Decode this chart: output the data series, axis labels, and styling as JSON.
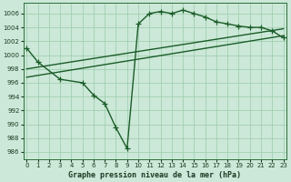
{
  "title": "Graphe pression niveau de la mer (hPa)",
  "bg_color": "#cce8d8",
  "grid_color": "#99ccaa",
  "line_color": "#1a5c28",
  "xlim": [
    -0.3,
    23.3
  ],
  "ylim": [
    985.0,
    1007.5
  ],
  "xticks": [
    0,
    1,
    2,
    3,
    4,
    5,
    6,
    7,
    8,
    9,
    10,
    11,
    12,
    13,
    14,
    15,
    16,
    17,
    18,
    19,
    20,
    21,
    22,
    23
  ],
  "yticks": [
    986,
    988,
    990,
    992,
    994,
    996,
    998,
    1000,
    1002,
    1004,
    1006
  ],
  "main_x": [
    0,
    1,
    3,
    5,
    6,
    7,
    8,
    9,
    10,
    11,
    12,
    13,
    14,
    15,
    16,
    17,
    18,
    19,
    20,
    21,
    22,
    23
  ],
  "main_y": [
    1001.0,
    999.0,
    996.5,
    996.0,
    994.2,
    993.0,
    989.5,
    986.5,
    1004.5,
    1006.0,
    1006.3,
    1006.0,
    1006.5,
    1006.0,
    1005.5,
    1004.8,
    1004.5,
    1004.2,
    1004.0,
    1004.0,
    1003.5,
    1002.5
  ],
  "trend1_x": [
    0,
    23
  ],
  "trend1_y": [
    998.0,
    1003.8
  ],
  "trend2_x": [
    0,
    23
  ],
  "trend2_y": [
    996.8,
    1002.8
  ],
  "tick_fontsize": 5,
  "xlabel_fontsize": 6,
  "linewidth": 1.0,
  "markersize": 4.5
}
